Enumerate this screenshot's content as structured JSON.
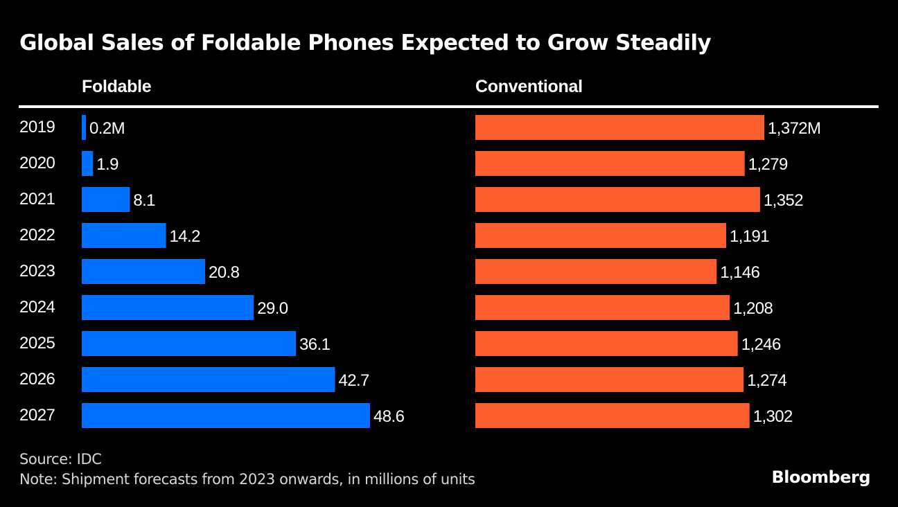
{
  "title": "Global Sales of Foldable Phones Expected to Grow Steadily",
  "source": "Source: IDC",
  "note": "Note: Shipment forecasts from 2023 onwards, in millions of units",
  "brand": "Bloomberg",
  "colors": {
    "foldable": "#0071FF",
    "conventional": "#FC5D2C",
    "background": "#000000",
    "text": "#FFFFFF"
  },
  "chart_data": [
    {
      "type": "bar",
      "orientation": "horizontal",
      "title": "Foldable",
      "unit": "M",
      "categories": [
        "2019",
        "2020",
        "2021",
        "2022",
        "2023",
        "2024",
        "2025",
        "2026",
        "2027"
      ],
      "values": [
        0.2,
        1.9,
        8.1,
        14.2,
        20.8,
        29.0,
        36.1,
        42.7,
        48.6
      ],
      "labels": [
        "0.2M",
        "1.9",
        "8.1",
        "14.2",
        "20.8",
        "29.0",
        "36.1",
        "42.7",
        "48.6"
      ],
      "xlim": [
        0,
        48.6
      ],
      "grid": false
    },
    {
      "type": "bar",
      "orientation": "horizontal",
      "title": "Conventional",
      "unit": "M",
      "categories": [
        "2019",
        "2020",
        "2021",
        "2022",
        "2023",
        "2024",
        "2025",
        "2026",
        "2027"
      ],
      "values": [
        1372,
        1279,
        1352,
        1191,
        1146,
        1208,
        1246,
        1274,
        1302
      ],
      "labels": [
        "1,372M",
        "1,279",
        "1,352",
        "1,191",
        "1,146",
        "1,208",
        "1,246",
        "1,274",
        "1,302"
      ],
      "xlim": [
        0,
        1372
      ],
      "grid": false
    }
  ]
}
